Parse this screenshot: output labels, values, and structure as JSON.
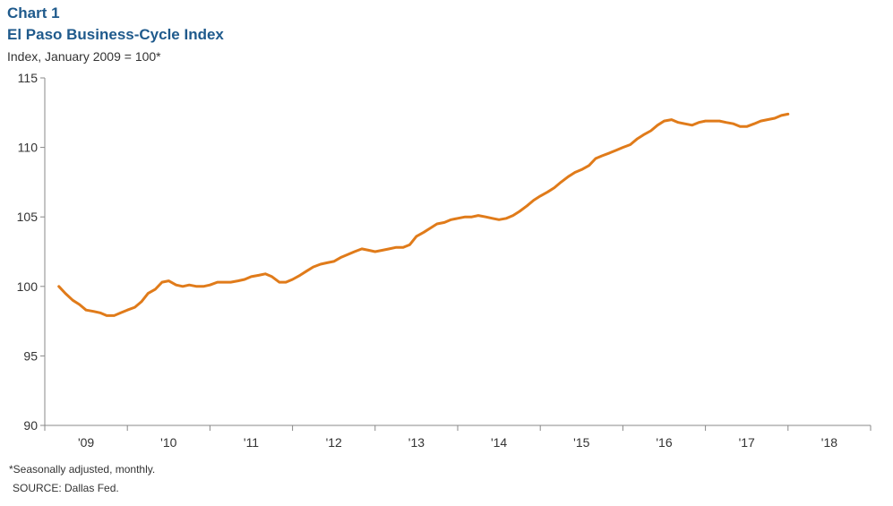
{
  "header": {
    "chart_label": "Chart 1",
    "title": "El Paso Business-Cycle Index",
    "subtitle": "Index, January 2009 = 100*"
  },
  "footer": {
    "footnote": "*Seasonally adjusted, monthly.",
    "source": "SOURCE: Dallas Fed."
  },
  "colors": {
    "line": "#e07b1a",
    "axis": "#888888",
    "title": "#1f5a8c"
  },
  "chart_data": {
    "type": "line",
    "title": "El Paso Business-Cycle Index",
    "subtitle": "Index, January 2009 = 100*",
    "grid": false,
    "legend": "none",
    "ylim": [
      90,
      115
    ],
    "y_ticks": [
      90,
      95,
      100,
      105,
      110,
      115
    ],
    "xlim": [
      2008.83,
      2018.83
    ],
    "x_ticks": [
      {
        "label": "'09",
        "position": 2009.33
      },
      {
        "label": "'10",
        "position": 2010.33
      },
      {
        "label": "'11",
        "position": 2011.33
      },
      {
        "label": "'12",
        "position": 2012.33
      },
      {
        "label": "'13",
        "position": 2013.33
      },
      {
        "label": "'14",
        "position": 2014.33
      },
      {
        "label": "'15",
        "position": 2015.33
      },
      {
        "label": "'16",
        "position": 2016.33
      },
      {
        "label": "'17",
        "position": 2017.33
      },
      {
        "label": "'18",
        "position": 2018.33
      }
    ],
    "series": [
      {
        "points": [
          [
            2009.0,
            100.0
          ],
          [
            2009.08,
            99.5
          ],
          [
            2009.17,
            99.0
          ],
          [
            2009.25,
            98.7
          ],
          [
            2009.33,
            98.3
          ],
          [
            2009.42,
            98.2
          ],
          [
            2009.5,
            98.1
          ],
          [
            2009.58,
            97.9
          ],
          [
            2009.67,
            97.9
          ],
          [
            2009.75,
            98.1
          ],
          [
            2009.83,
            98.3
          ],
          [
            2009.92,
            98.5
          ],
          [
            2010.0,
            98.9
          ],
          [
            2010.08,
            99.5
          ],
          [
            2010.17,
            99.8
          ],
          [
            2010.25,
            100.3
          ],
          [
            2010.33,
            100.4
          ],
          [
            2010.42,
            100.1
          ],
          [
            2010.5,
            100.0
          ],
          [
            2010.58,
            100.1
          ],
          [
            2010.67,
            100.0
          ],
          [
            2010.75,
            100.0
          ],
          [
            2010.83,
            100.1
          ],
          [
            2010.92,
            100.3
          ],
          [
            2011.0,
            100.3
          ],
          [
            2011.08,
            100.3
          ],
          [
            2011.17,
            100.4
          ],
          [
            2011.25,
            100.5
          ],
          [
            2011.33,
            100.7
          ],
          [
            2011.42,
            100.8
          ],
          [
            2011.5,
            100.9
          ],
          [
            2011.58,
            100.7
          ],
          [
            2011.67,
            100.3
          ],
          [
            2011.75,
            100.3
          ],
          [
            2011.83,
            100.5
          ],
          [
            2011.92,
            100.8
          ],
          [
            2012.0,
            101.1
          ],
          [
            2012.08,
            101.4
          ],
          [
            2012.17,
            101.6
          ],
          [
            2012.25,
            101.7
          ],
          [
            2012.33,
            101.8
          ],
          [
            2012.42,
            102.1
          ],
          [
            2012.5,
            102.3
          ],
          [
            2012.58,
            102.5
          ],
          [
            2012.67,
            102.7
          ],
          [
            2012.75,
            102.6
          ],
          [
            2012.83,
            102.5
          ],
          [
            2012.92,
            102.6
          ],
          [
            2013.0,
            102.7
          ],
          [
            2013.08,
            102.8
          ],
          [
            2013.17,
            102.8
          ],
          [
            2013.25,
            103.0
          ],
          [
            2013.33,
            103.6
          ],
          [
            2013.42,
            103.9
          ],
          [
            2013.5,
            104.2
          ],
          [
            2013.58,
            104.5
          ],
          [
            2013.67,
            104.6
          ],
          [
            2013.75,
            104.8
          ],
          [
            2013.83,
            104.9
          ],
          [
            2013.92,
            105.0
          ],
          [
            2014.0,
            105.0
          ],
          [
            2014.08,
            105.1
          ],
          [
            2014.17,
            105.0
          ],
          [
            2014.25,
            104.9
          ],
          [
            2014.33,
            104.8
          ],
          [
            2014.42,
            104.9
          ],
          [
            2014.5,
            105.1
          ],
          [
            2014.58,
            105.4
          ],
          [
            2014.67,
            105.8
          ],
          [
            2014.75,
            106.2
          ],
          [
            2014.83,
            106.5
          ],
          [
            2014.92,
            106.8
          ],
          [
            2015.0,
            107.1
          ],
          [
            2015.08,
            107.5
          ],
          [
            2015.17,
            107.9
          ],
          [
            2015.25,
            108.2
          ],
          [
            2015.33,
            108.4
          ],
          [
            2015.42,
            108.7
          ],
          [
            2015.5,
            109.2
          ],
          [
            2015.58,
            109.4
          ],
          [
            2015.67,
            109.6
          ],
          [
            2015.75,
            109.8
          ],
          [
            2015.83,
            110.0
          ],
          [
            2015.92,
            110.2
          ],
          [
            2016.0,
            110.6
          ],
          [
            2016.08,
            110.9
          ],
          [
            2016.17,
            111.2
          ],
          [
            2016.25,
            111.6
          ],
          [
            2016.33,
            111.9
          ],
          [
            2016.42,
            112.0
          ],
          [
            2016.5,
            111.8
          ],
          [
            2016.58,
            111.7
          ],
          [
            2016.67,
            111.6
          ],
          [
            2016.75,
            111.8
          ],
          [
            2016.83,
            111.9
          ],
          [
            2016.92,
            111.9
          ],
          [
            2017.0,
            111.9
          ],
          [
            2017.08,
            111.8
          ],
          [
            2017.17,
            111.7
          ],
          [
            2017.25,
            111.5
          ],
          [
            2017.33,
            111.5
          ],
          [
            2017.42,
            111.7
          ],
          [
            2017.5,
            111.9
          ],
          [
            2017.58,
            112.0
          ],
          [
            2017.67,
            112.1
          ],
          [
            2017.75,
            112.3
          ],
          [
            2017.83,
            112.4
          ]
        ]
      }
    ]
  }
}
